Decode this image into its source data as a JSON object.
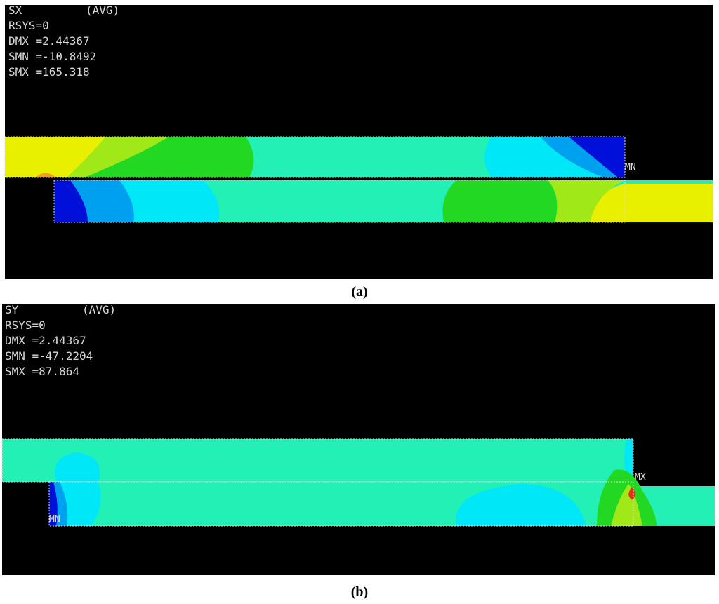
{
  "panels": [
    {
      "label": "SX",
      "avg": "(AVG)",
      "lines": [
        "RSYS=0",
        "DMX =2.44367",
        "SMN =-10.8492",
        "SMX =165.318"
      ],
      "marker": "MN",
      "caption": "(a)"
    },
    {
      "label": "SY",
      "avg": "(AVG)",
      "lines": [
        "RSYS=0",
        "DMX =2.44367",
        "SMN =-47.2204",
        "SMX =87.864"
      ],
      "marker": "MX",
      "marker2": "MN",
      "caption": "(b)"
    }
  ]
}
